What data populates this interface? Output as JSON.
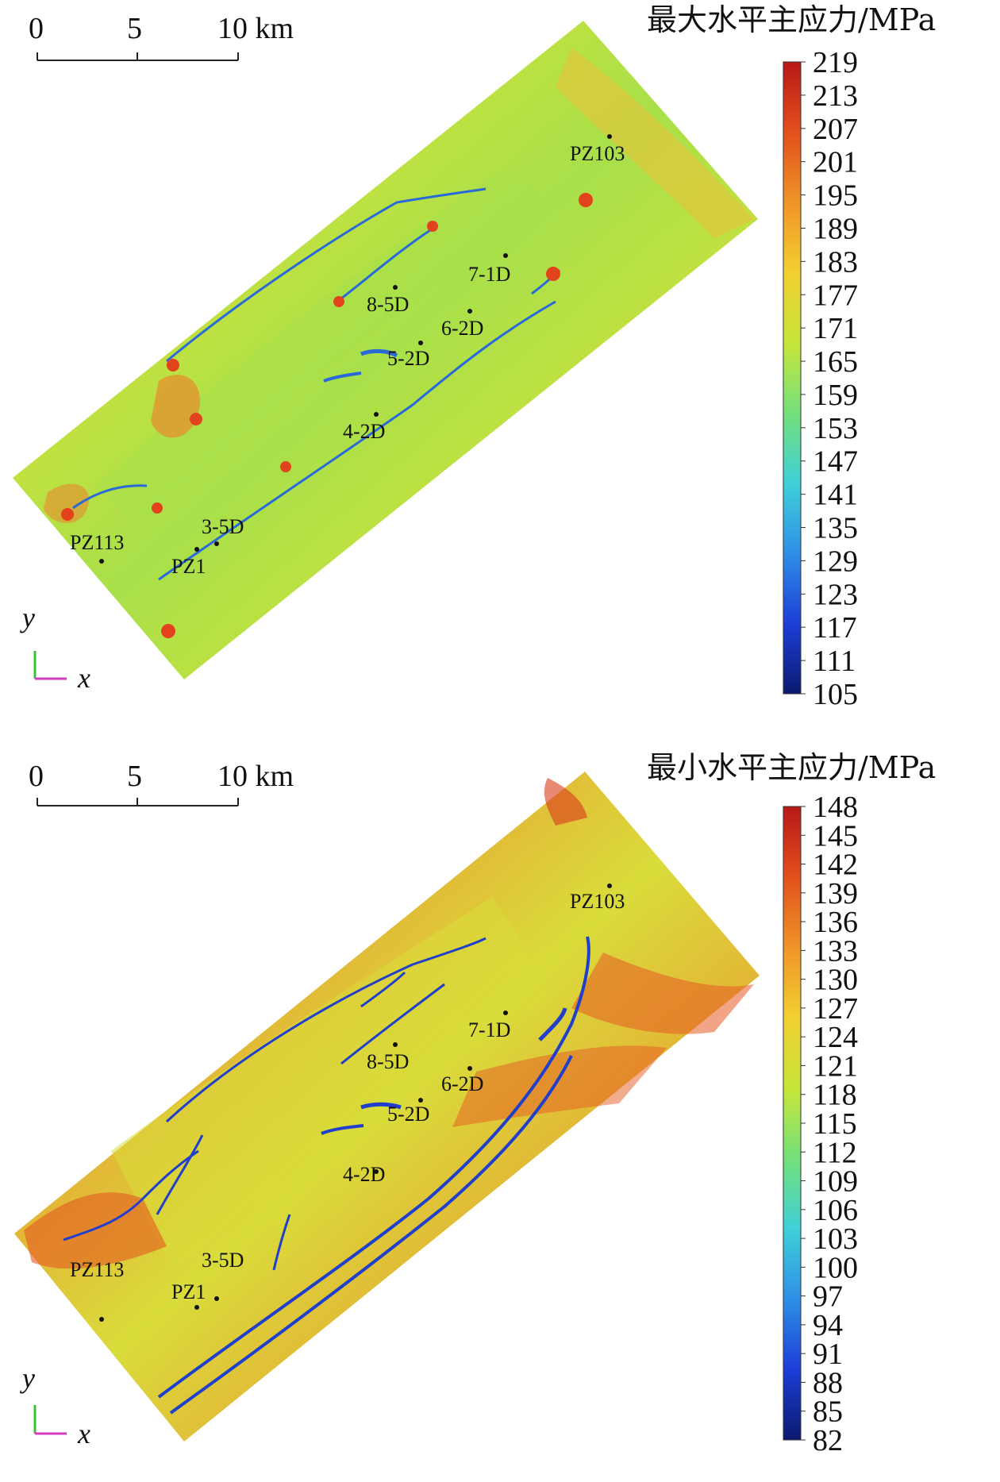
{
  "panels": [
    {
      "id": "max",
      "title": "最大水平主应力/MPa",
      "scalebar_labels": [
        "0",
        "5",
        "10 km"
      ],
      "axis_labels": {
        "y": "y",
        "x": "x"
      },
      "colorbar_ticks": [
        219,
        213,
        207,
        201,
        195,
        189,
        183,
        177,
        171,
        165,
        159,
        153,
        147,
        141,
        135,
        129,
        123,
        117,
        111,
        105
      ],
      "wells": [
        "PZ103",
        "7-1D",
        "8-5D",
        "6-2D",
        "5-2D",
        "4-2D",
        "3-5D",
        "PZ113",
        "PZ1"
      ],
      "field_colors": {
        "base": "#cfe23a",
        "band": "#a8e04a",
        "edge": "#e88a2e",
        "hot": "#e2431c",
        "fault": "#2a6ad8"
      }
    },
    {
      "id": "min",
      "title": "最小水平主应力/MPa",
      "scalebar_labels": [
        "0",
        "5",
        "10 km"
      ],
      "axis_labels": {
        "y": "y",
        "x": "x"
      },
      "colorbar_ticks": [
        148,
        145,
        142,
        139,
        136,
        133,
        130,
        127,
        124,
        121,
        118,
        115,
        112,
        109,
        106,
        103,
        100,
        97,
        94,
        91,
        88,
        85,
        82
      ],
      "wells": [
        "PZ103",
        "7-1D",
        "8-5D",
        "6-2D",
        "5-2D",
        "4-2D",
        "3-5D",
        "PZ113",
        "PZ1"
      ],
      "field_colors": {
        "base": "#e9a033",
        "band": "#d9dc3b",
        "edge": "#e55a22",
        "hot": "#d83a1a",
        "fault": "#1f3fcc"
      }
    }
  ],
  "colormap": [
    "#0b1a6e",
    "#1c3ed8",
    "#2e8fe6",
    "#3fd0d8",
    "#74e07a",
    "#c8e63a",
    "#f2d030",
    "#ef9428",
    "#e2501c",
    "#b81818"
  ]
}
